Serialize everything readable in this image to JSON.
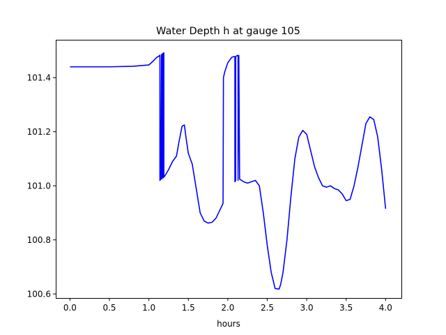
{
  "chart_data": {
    "type": "line",
    "title": "Water Depth h at gauge 105",
    "xlabel": "hours",
    "ylabel": "",
    "xlim": [
      -0.18,
      4.2
    ],
    "ylim": [
      100.585,
      101.54
    ],
    "x_ticks": [
      0.0,
      0.5,
      1.0,
      1.5,
      2.0,
      2.5,
      3.0,
      3.5,
      4.0
    ],
    "x_tick_labels": [
      "0.0",
      "0.5",
      "1.0",
      "1.5",
      "2.0",
      "2.5",
      "3.0",
      "3.5",
      "4.0"
    ],
    "y_ticks": [
      100.6,
      100.8,
      101.0,
      101.2,
      101.4
    ],
    "y_tick_labels": [
      "100.6",
      "100.8",
      "101.0",
      "101.2",
      "101.4"
    ],
    "grid": false,
    "legend": "none",
    "series": [
      {
        "color": "#0000ff",
        "x": [
          0.0,
          0.5,
          0.8,
          1.0,
          1.05,
          1.1,
          1.13,
          1.14,
          1.14,
          1.15,
          1.16,
          1.165,
          1.17,
          1.175,
          1.18,
          1.185,
          1.19,
          1.19,
          1.2,
          1.25,
          1.3,
          1.35,
          1.38,
          1.42,
          1.45,
          1.47,
          1.5,
          1.55,
          1.6,
          1.65,
          1.7,
          1.75,
          1.8,
          1.85,
          1.9,
          1.94,
          1.945,
          1.96,
          2.0,
          2.05,
          2.08,
          2.09,
          2.09,
          2.1,
          2.1,
          2.11,
          2.12,
          2.13,
          2.13,
          2.14,
          2.15,
          2.2,
          2.25,
          2.3,
          2.35,
          2.4,
          2.45,
          2.5,
          2.55,
          2.6,
          2.65,
          2.67,
          2.7,
          2.75,
          2.8,
          2.85,
          2.9,
          2.95,
          3.0,
          3.05,
          3.1,
          3.15,
          3.2,
          3.25,
          3.3,
          3.35,
          3.4,
          3.45,
          3.5,
          3.55,
          3.6,
          3.65,
          3.7,
          3.75,
          3.8,
          3.85,
          3.9,
          3.95,
          4.0
        ],
        "y": [
          101.44,
          101.44,
          101.442,
          101.447,
          101.46,
          101.475,
          101.48,
          101.483,
          101.02,
          101.025,
          101.485,
          101.025,
          101.488,
          101.03,
          101.49,
          101.03,
          101.492,
          101.033,
          101.035,
          101.06,
          101.09,
          101.11,
          101.16,
          101.22,
          101.225,
          101.18,
          101.12,
          101.08,
          100.99,
          100.9,
          100.87,
          100.862,
          100.865,
          100.88,
          100.91,
          100.935,
          101.4,
          101.42,
          101.455,
          101.475,
          101.478,
          101.478,
          101.015,
          101.02,
          101.478,
          101.48,
          101.482,
          101.482,
          101.02,
          101.482,
          101.025,
          101.015,
          101.01,
          101.015,
          101.02,
          101.0,
          100.9,
          100.78,
          100.68,
          100.62,
          100.618,
          100.635,
          100.68,
          100.8,
          100.96,
          101.1,
          101.18,
          101.205,
          101.19,
          101.13,
          101.07,
          101.03,
          101.0,
          100.995,
          101.0,
          100.99,
          100.985,
          100.97,
          100.945,
          100.95,
          101.0,
          101.07,
          101.15,
          101.23,
          101.255,
          101.245,
          101.18,
          101.06,
          100.915
        ]
      }
    ]
  }
}
